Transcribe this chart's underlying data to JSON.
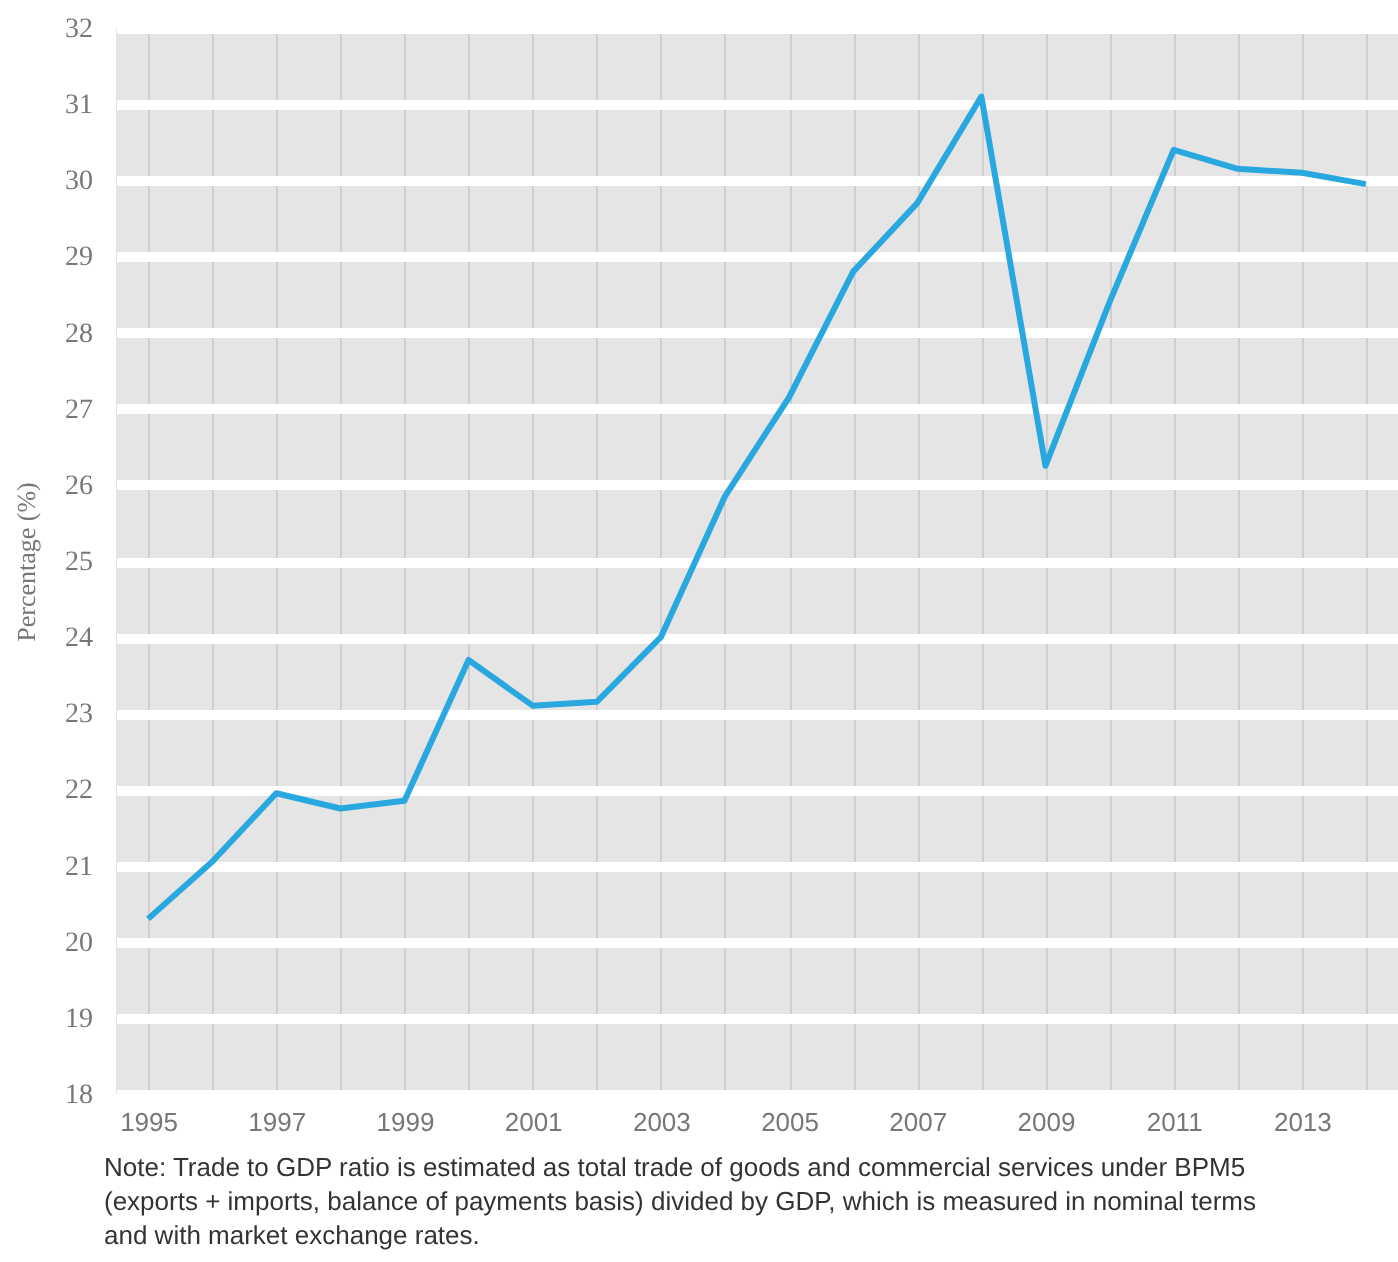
{
  "chart_data": {
    "type": "line",
    "ylabel": "Percentage (%)",
    "categories": [
      "1995",
      null,
      "1997",
      null,
      "1999",
      null,
      "2001",
      null,
      "2003",
      null,
      "2005",
      null,
      "2007",
      null,
      "2009",
      null,
      "2011",
      null,
      "2013",
      null
    ],
    "series": [
      {
        "color": "#29a8e0",
        "values": [
          20.3,
          21.05,
          21.95,
          21.75,
          21.85,
          23.7,
          23.1,
          23.15,
          24.0,
          25.85,
          27.15,
          28.8,
          29.7,
          31.1,
          26.25,
          28.4,
          30.4,
          30.15,
          30.1,
          29.95
        ]
      }
    ],
    "ylim": [
      18,
      32
    ],
    "yticks": [
      18,
      19,
      20,
      21,
      22,
      23,
      24,
      25,
      26,
      27,
      28,
      29,
      30,
      31,
      32
    ],
    "grid": true,
    "marker": "none",
    "line_style": "solid",
    "annotations": [
      "Note: Trade to GDP ratio is estimated as total trade of goods and commercial services under BPM5 (exports + imports, balance of payments basis) divided by GDP, which is measured in nominal terms and with market exchange rates."
    ]
  }
}
